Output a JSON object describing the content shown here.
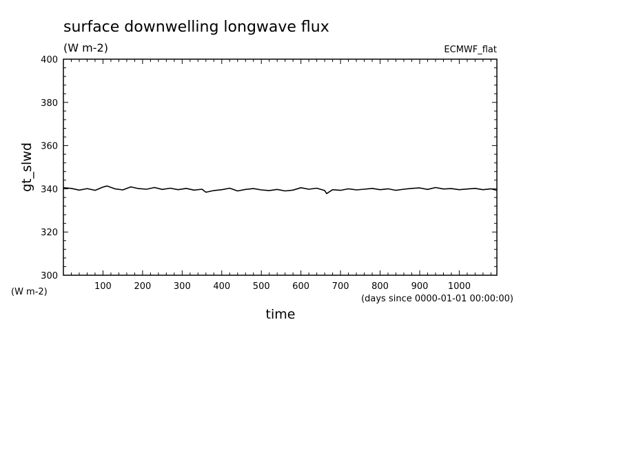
{
  "chart_data": {
    "type": "line",
    "title": "surface downwelling longwave flux",
    "units": "(W m-2)",
    "dataset": "ECMWF_flat",
    "ylabel": "gt_slwd",
    "xlabel": "time",
    "x_units_note": "(days since 0000-01-01 00:00:00)",
    "y_units_note": "(W m-2)",
    "xlim": [
      0,
      1095
    ],
    "ylim": [
      300,
      400
    ],
    "x_ticks": [
      "100",
      "200",
      "300",
      "400",
      "500",
      "600",
      "700",
      "800",
      "900",
      "1000"
    ],
    "y_ticks": [
      "300",
      "320",
      "340",
      "360",
      "380",
      "400"
    ],
    "grid": false,
    "series": [
      {
        "color": "#000000",
        "x": [
          0,
          20,
          40,
          60,
          80,
          100,
          110,
          130,
          150,
          170,
          190,
          210,
          230,
          250,
          270,
          290,
          310,
          330,
          350,
          360,
          380,
          400,
          420,
          440,
          460,
          480,
          500,
          520,
          540,
          560,
          580,
          600,
          620,
          640,
          660,
          665,
          680,
          700,
          720,
          740,
          760,
          780,
          800,
          820,
          840,
          860,
          880,
          900,
          920,
          940,
          960,
          980,
          1000,
          1020,
          1040,
          1060,
          1080,
          1095
        ],
        "y": [
          340.5,
          340.2,
          339.4,
          340.1,
          339.3,
          340.8,
          341.3,
          340.0,
          339.5,
          340.9,
          340.1,
          339.8,
          340.6,
          339.7,
          340.3,
          339.6,
          340.2,
          339.4,
          339.8,
          338.4,
          339.2,
          339.6,
          340.3,
          339.0,
          339.7,
          340.1,
          339.5,
          339.2,
          339.7,
          339.0,
          339.4,
          340.5,
          339.8,
          340.3,
          339.2,
          337.8,
          339.6,
          339.3,
          340.0,
          339.5,
          339.8,
          340.2,
          339.6,
          340.0,
          339.3,
          339.8,
          340.2,
          340.4,
          339.7,
          340.6,
          339.9,
          340.1,
          339.6,
          339.9,
          340.2,
          339.6,
          340.0,
          339.3
        ]
      }
    ]
  }
}
